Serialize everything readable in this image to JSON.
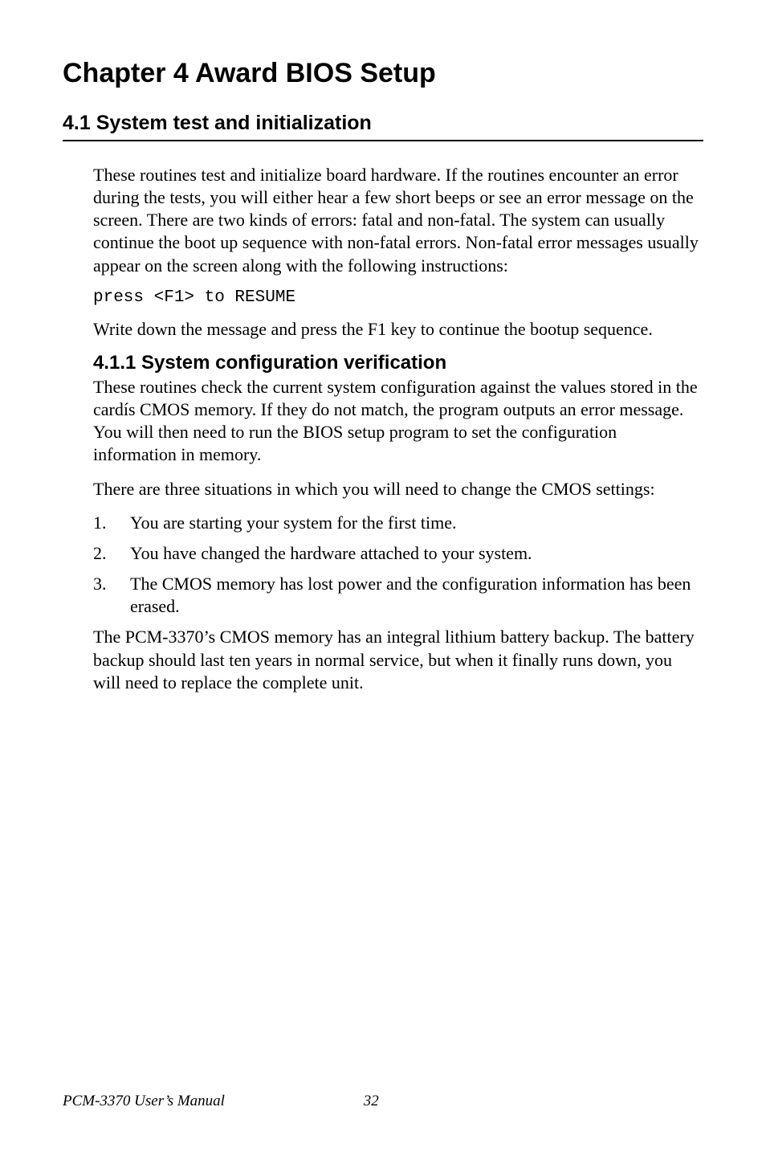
{
  "chapter": {
    "title": "Chapter 4  Award BIOS Setup"
  },
  "section": {
    "number_label": "4.1  System test and initialization"
  },
  "paragraphs": {
    "intro": "These routines test and initialize board hardware. If the routines encounter an error during the tests, you will either hear a few short beeps or see an error message on the screen. There are two kinds of errors: fatal and non-fatal. The system can usually continue the boot up sequence with non-fatal errors. Non-fatal error messages usually appear on the screen along with the following instructions:",
    "code": "press <F1> to RESUME",
    "after_code": "Write down the message and press the F1 key to continue the bootup sequence.",
    "subsection_title": "4.1.1 System configuration verification",
    "sub_p1": "These routines check the current system configuration against the values stored in the cardís CMOS memory. If they do not match, the program outputs an error message. You will then need to run the BIOS setup program to set the configuration information in memory.",
    "sub_p2": "There are three situations in which you will need to change the CMOS settings:",
    "after_list": "The PCM-3370’s CMOS memory has an integral lithium battery backup. The battery backup should last ten years in normal service, but when it finally runs down, you will need to replace the complete unit."
  },
  "list": {
    "items": [
      {
        "num": "1.",
        "text": "You are starting your system for the first time."
      },
      {
        "num": "2.",
        "text": "You have changed the hardware attached to your system."
      },
      {
        "num": "3.",
        "text": "The CMOS memory has lost power and the configuration information has been erased."
      }
    ]
  },
  "footer": {
    "manual": "PCM-3370 User’s Manual",
    "page": "32"
  },
  "colors": {
    "background": "#ffffff",
    "text": "#000000",
    "rule": "#000000"
  },
  "typography": {
    "chapter_title_fontsize": 34,
    "section_heading_fontsize": 25,
    "subsection_heading_fontsize": 24,
    "body_fontsize": 22,
    "code_fontsize": 21,
    "footer_fontsize": 19,
    "heading_font": "Arial",
    "body_font": "Times New Roman",
    "code_font": "Courier New"
  }
}
